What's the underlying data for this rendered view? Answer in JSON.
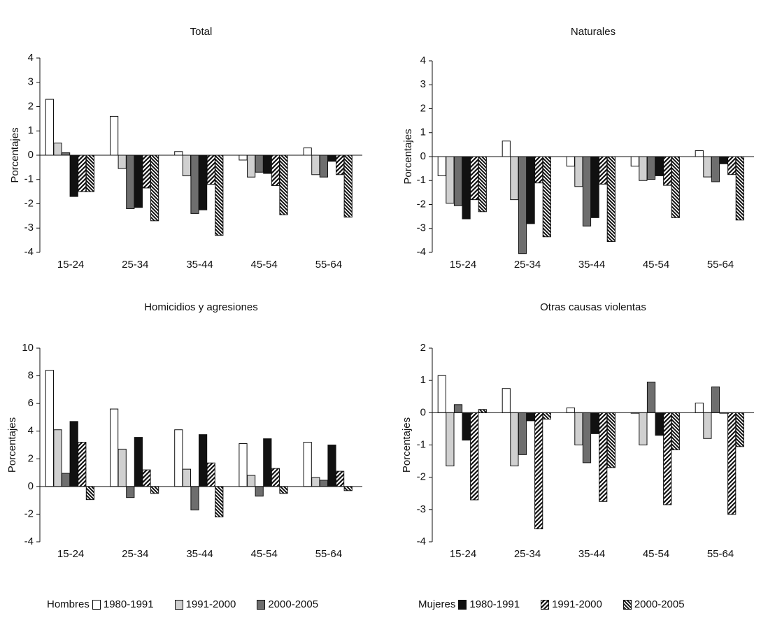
{
  "colors": {
    "s1": "#ffffff",
    "s2": "#d0d0d0",
    "s3": "#6e6e6e",
    "s4": "#111111",
    "s5": "#ffffff",
    "s6": "#ffffff",
    "stroke": "#111111"
  },
  "legend": {
    "hombres_label": "Hombres",
    "mujeres_label": "Mujeres",
    "items": [
      "1980-1991",
      "1991-2000",
      "2000-2005"
    ]
  },
  "chart_data": [
    {
      "type": "bar",
      "title": "Total",
      "ylabel": "Porcentajes",
      "ylim": [
        -4,
        4
      ],
      "yticks": [
        "-4",
        "-3",
        "-2",
        "-1",
        "0",
        "1",
        "2",
        "3",
        "4"
      ],
      "categories": [
        "15-24",
        "25-34",
        "35-44",
        "45-54",
        "55-64"
      ],
      "series": [
        {
          "name": "Hombres 1980-1991",
          "values": [
            2.3,
            1.6,
            0.15,
            -0.2,
            0.3
          ]
        },
        {
          "name": "Hombres 1991-2000",
          "values": [
            0.5,
            -0.55,
            -0.85,
            -0.9,
            -0.8
          ]
        },
        {
          "name": "Hombres 2000-2005",
          "values": [
            0.1,
            -2.2,
            -2.4,
            -0.7,
            -0.9
          ]
        },
        {
          "name": "Mujeres 1980-1991",
          "values": [
            -1.7,
            -2.15,
            -2.25,
            -0.75,
            -0.25
          ]
        },
        {
          "name": "Mujeres 1991-2000",
          "values": [
            -1.5,
            -1.35,
            -1.2,
            -1.25,
            -0.8
          ]
        },
        {
          "name": "Mujeres 2000-2005",
          "values": [
            -1.5,
            -2.7,
            -3.3,
            -2.45,
            -2.55
          ]
        }
      ]
    },
    {
      "type": "bar",
      "title": "Naturales",
      "ylabel": "Porcentajes",
      "ylim": [
        -4,
        4
      ],
      "yticks": [
        "-4",
        "-3",
        "-2",
        "-1",
        "0",
        "1",
        "2",
        "3",
        "4"
      ],
      "categories": [
        "15-24",
        "25-34",
        "35-44",
        "45-54",
        "55-64"
      ],
      "series": [
        {
          "name": "Hombres 1980-1991",
          "values": [
            -0.8,
            0.65,
            -0.4,
            -0.4,
            0.25
          ]
        },
        {
          "name": "Hombres 1991-2000",
          "values": [
            -1.95,
            -1.8,
            -1.25,
            -1.0,
            -0.85
          ]
        },
        {
          "name": "Hombres 2000-2005",
          "values": [
            -2.05,
            -4.05,
            -2.9,
            -0.95,
            -1.05
          ]
        },
        {
          "name": "Mujeres 1980-1991",
          "values": [
            -2.6,
            -2.8,
            -2.55,
            -0.8,
            -0.3
          ]
        },
        {
          "name": "Mujeres 1991-2000",
          "values": [
            -1.8,
            -1.1,
            -1.15,
            -1.2,
            -0.75
          ]
        },
        {
          "name": "Mujeres 2000-2005",
          "values": [
            -2.3,
            -3.35,
            -3.55,
            -2.55,
            -2.65
          ]
        }
      ]
    },
    {
      "type": "bar",
      "title": "Homicidios y agresiones",
      "ylabel": "Porcentajes",
      "ylim": [
        -4,
        10
      ],
      "yticks": [
        "-4",
        "-2",
        "0",
        "2",
        "4",
        "6",
        "8",
        "10"
      ],
      "categories": [
        "15-24",
        "25-34",
        "35-44",
        "45-54",
        "55-64"
      ],
      "series": [
        {
          "name": "Hombres 1980-1991",
          "values": [
            8.4,
            5.6,
            4.1,
            3.1,
            3.2
          ]
        },
        {
          "name": "Hombres 1991-2000",
          "values": [
            4.1,
            2.7,
            1.25,
            0.8,
            0.65
          ]
        },
        {
          "name": "Hombres 2000-2005",
          "values": [
            0.95,
            -0.8,
            -1.7,
            -0.7,
            0.45
          ]
        },
        {
          "name": "Mujeres 1980-1991",
          "values": [
            4.7,
            3.55,
            3.75,
            3.45,
            3.0
          ]
        },
        {
          "name": "Mujeres 1991-2000",
          "values": [
            3.2,
            1.2,
            1.7,
            1.3,
            1.1
          ]
        },
        {
          "name": "Mujeres 2000-2005",
          "values": [
            -0.95,
            -0.5,
            -2.2,
            -0.5,
            -0.3
          ]
        }
      ]
    },
    {
      "type": "bar",
      "title": "Otras causas violentas",
      "ylabel": "Porcentajes",
      "ylim": [
        -4,
        2
      ],
      "yticks": [
        "-4",
        "-3",
        "-2",
        "-1",
        "0",
        "1",
        "2"
      ],
      "categories": [
        "15-24",
        "25-34",
        "35-44",
        "45-54",
        "55-64"
      ],
      "series": [
        {
          "name": "Hombres 1980-1991",
          "values": [
            1.15,
            0.75,
            0.15,
            0.0,
            0.3
          ]
        },
        {
          "name": "Hombres 1991-2000",
          "values": [
            -1.65,
            -1.65,
            -1.0,
            -1.0,
            -0.8
          ]
        },
        {
          "name": "Hombres 2000-2005",
          "values": [
            0.25,
            -1.3,
            -1.55,
            0.95,
            0.8
          ]
        },
        {
          "name": "Mujeres 1980-1991",
          "values": [
            -0.85,
            -0.25,
            -0.65,
            -0.7,
            0.0
          ]
        },
        {
          "name": "Mujeres 1991-2000",
          "values": [
            -2.7,
            -3.6,
            -2.75,
            -2.85,
            -3.15
          ]
        },
        {
          "name": "Mujeres 2000-2005",
          "values": [
            0.1,
            -0.2,
            -1.7,
            -1.15,
            -1.05
          ]
        }
      ]
    }
  ]
}
